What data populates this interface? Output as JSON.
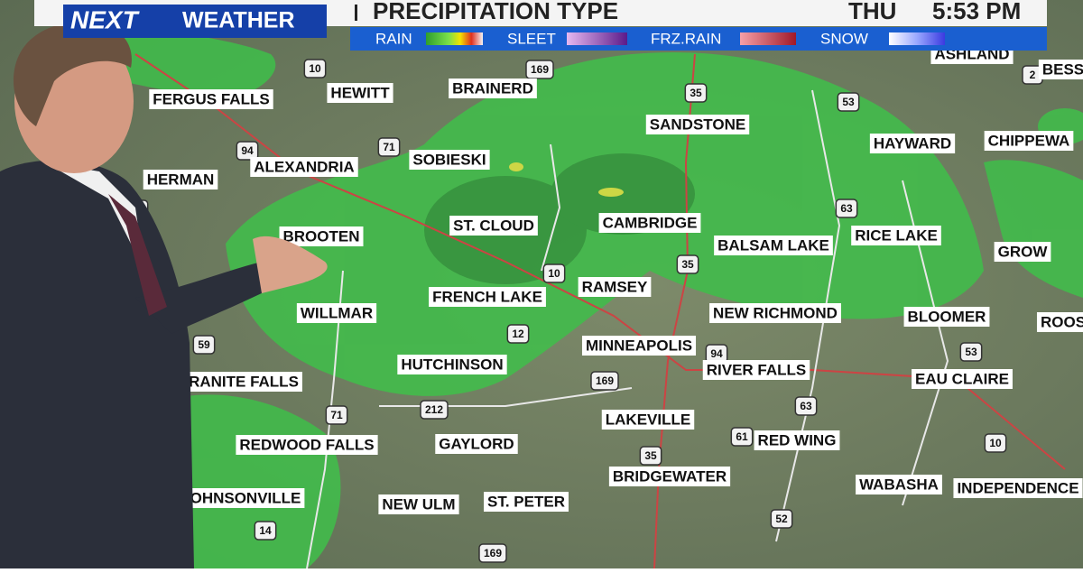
{
  "header": {
    "brand_next": "NEXT",
    "brand_weather": "WEATHER",
    "title": "PRECIPITATION TYPE",
    "day": "THU",
    "time": "5:53 PM"
  },
  "legend": [
    "RAIN",
    "SLEET",
    "FRZ.RAIN",
    "SNOW"
  ],
  "cities": [
    "ASHLAND",
    "BESS",
    "FERGUS FALLS",
    "HEWITT",
    "BRAINERD",
    "SANDSTONE",
    "HAYWARD",
    "CHIPPEWA",
    "HERMAN",
    "ALEXANDRIA",
    "SOBIESKI",
    "ST. CLOUD",
    "CAMBRIDGE",
    "BALSAM LAKE",
    "RICE LAKE",
    "GROW",
    "BROOTEN",
    "FRENCH LAKE",
    "RAMSEY",
    "NEW RICHMOND",
    "BLOOMER",
    "ROOS",
    "WILLMAR",
    "MINNEAPOLIS",
    "HUTCHINSON",
    "RIVER FALLS",
    "EAU CLAIRE",
    "RANITE FALLS",
    "LAKEVILLE",
    "REDWOOD FALLS",
    "GAYLORD",
    "RED WING",
    "BRIDGEWATER",
    "WABASHA",
    "INDEPENDENCE",
    "OHNSONVILLE",
    "NEW ULM",
    "ST. PETER"
  ],
  "highways": [
    "10",
    "169",
    "35",
    "53",
    "2",
    "94",
    "71",
    "35",
    "63",
    "35",
    "10",
    "12",
    "59",
    "53",
    "94",
    "169",
    "71",
    "212",
    "63",
    "61",
    "35",
    "10",
    "52",
    "14",
    "169"
  ]
}
